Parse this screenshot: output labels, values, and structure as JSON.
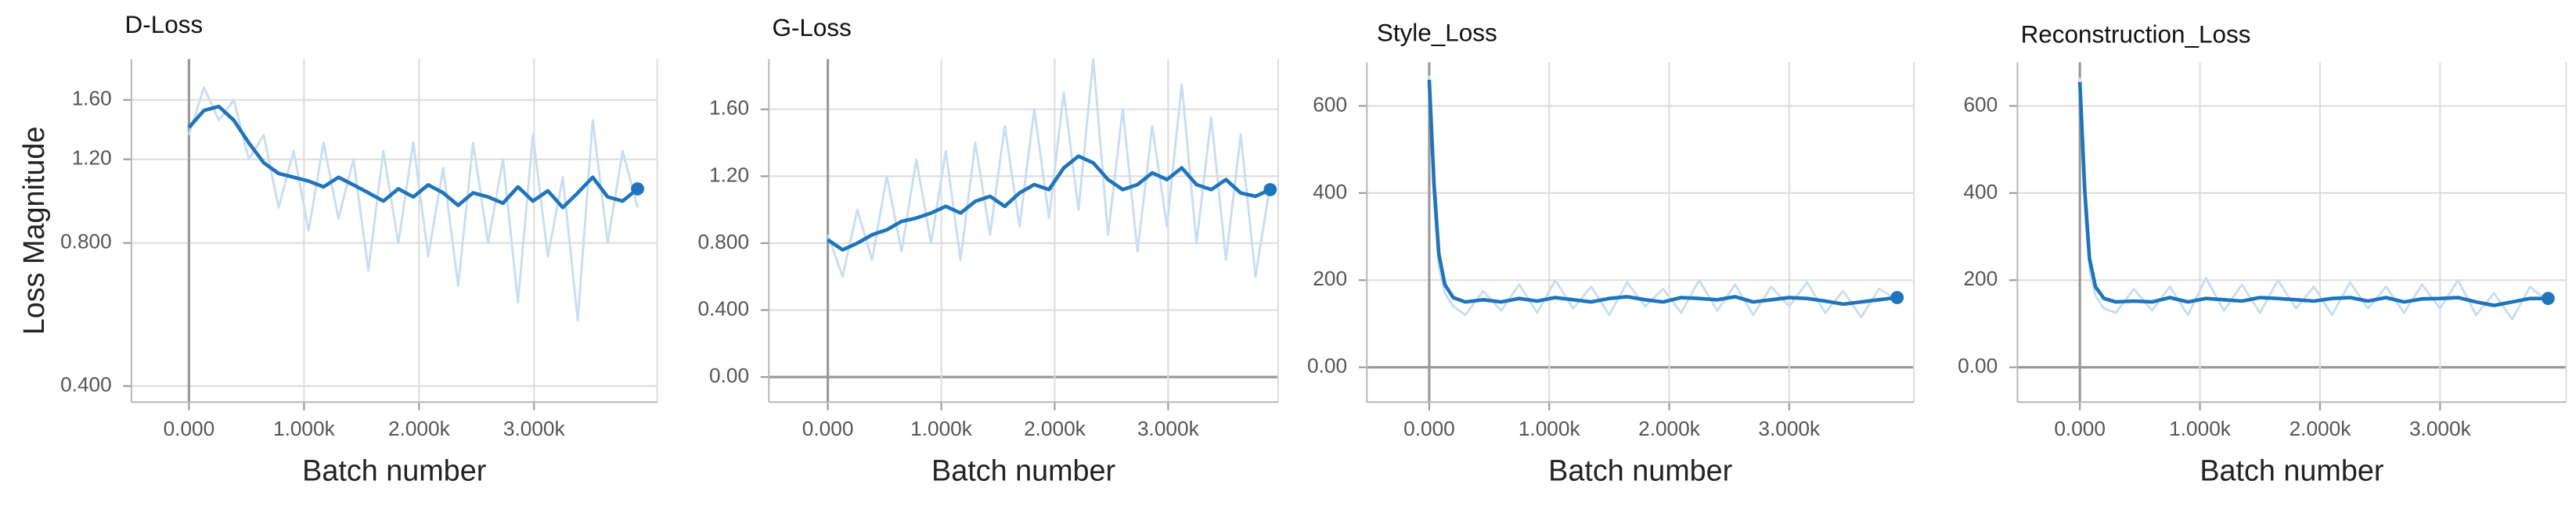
{
  "chart_data": [
    {
      "type": "line",
      "title": "D-Loss",
      "x_label": "Batch number",
      "y_label": "Loss Magnitude",
      "yscale": "log",
      "grid": true,
      "x": [
        0,
        130,
        260,
        390,
        520,
        650,
        780,
        910,
        1040,
        1170,
        1300,
        1430,
        1560,
        1690,
        1820,
        1950,
        2080,
        2210,
        2340,
        2470,
        2600,
        2730,
        2860,
        2990,
        3120,
        3250,
        3380,
        3510,
        3640,
        3770,
        3900
      ],
      "series": [
        {
          "color": "#c9def0",
          "values": [
            1.35,
            1.7,
            1.45,
            1.6,
            1.2,
            1.35,
            0.95,
            1.25,
            0.85,
            1.3,
            0.9,
            1.2,
            0.7,
            1.25,
            0.8,
            1.3,
            0.75,
            1.15,
            0.65,
            1.3,
            0.8,
            1.2,
            0.6,
            1.35,
            0.75,
            1.1,
            0.55,
            1.45,
            0.8,
            1.25,
            0.95
          ]
        },
        {
          "color": "#1f74bb",
          "values": [
            1.4,
            1.52,
            1.55,
            1.45,
            1.3,
            1.18,
            1.12,
            1.1,
            1.08,
            1.05,
            1.1,
            1.06,
            1.02,
            0.98,
            1.04,
            1.0,
            1.06,
            1.02,
            0.96,
            1.02,
            1.0,
            0.97,
            1.05,
            0.98,
            1.03,
            0.95,
            1.02,
            1.1,
            1.0,
            0.98,
            1.04
          ]
        }
      ],
      "xlim": [
        -500,
        4070
      ],
      "ylim": [
        0.37,
        1.95
      ],
      "xticks": [
        {
          "value": 0,
          "label": "0.000"
        },
        {
          "value": 1000,
          "label": "1.000k"
        },
        {
          "value": 2000,
          "label": "2.000k"
        },
        {
          "value": 3000,
          "label": "3.000k"
        }
      ],
      "yticks": [
        {
          "value": 0.4,
          "label": "0.400"
        },
        {
          "value": 0.8,
          "label": "0.800"
        },
        {
          "value": 1.2,
          "label": "1.20"
        },
        {
          "value": 1.6,
          "label": "1.60"
        }
      ]
    },
    {
      "type": "line",
      "title": "G-Loss",
      "x_label": "Batch number",
      "grid": true,
      "x": [
        0,
        130,
        260,
        390,
        520,
        650,
        780,
        910,
        1040,
        1170,
        1300,
        1430,
        1560,
        1690,
        1820,
        1950,
        2080,
        2210,
        2340,
        2470,
        2600,
        2730,
        2860,
        2990,
        3120,
        3250,
        3380,
        3510,
        3640,
        3770,
        3900
      ],
      "series": [
        {
          "color": "#c9def0",
          "values": [
            0.85,
            0.6,
            1.0,
            0.7,
            1.2,
            0.75,
            1.3,
            0.8,
            1.35,
            0.7,
            1.4,
            0.85,
            1.5,
            0.9,
            1.6,
            0.95,
            1.7,
            1.0,
            1.9,
            0.85,
            1.6,
            0.75,
            1.5,
            0.9,
            1.75,
            0.8,
            1.55,
            0.7,
            1.45,
            0.6,
            1.15
          ]
        },
        {
          "color": "#1f74bb",
          "values": [
            0.82,
            0.76,
            0.8,
            0.85,
            0.88,
            0.93,
            0.95,
            0.98,
            1.02,
            0.98,
            1.05,
            1.08,
            1.02,
            1.1,
            1.15,
            1.12,
            1.25,
            1.32,
            1.28,
            1.18,
            1.12,
            1.15,
            1.22,
            1.18,
            1.25,
            1.15,
            1.12,
            1.18,
            1.1,
            1.08,
            1.12
          ]
        }
      ],
      "xlim": [
        -520,
        3970
      ],
      "ylim": [
        -0.15,
        1.9
      ],
      "xticks": [
        {
          "value": 0,
          "label": "0.000"
        },
        {
          "value": 1000,
          "label": "1.000k"
        },
        {
          "value": 2000,
          "label": "2.000k"
        },
        {
          "value": 3000,
          "label": "3.000k"
        }
      ],
      "yticks": [
        {
          "value": 0,
          "label": "0.00"
        },
        {
          "value": 0.4,
          "label": "0.400"
        },
        {
          "value": 0.8,
          "label": "0.800"
        },
        {
          "value": 1.2,
          "label": "1.20"
        },
        {
          "value": 1.6,
          "label": "1.60"
        }
      ]
    },
    {
      "type": "line",
      "title": "Style_Loss",
      "x_label": "Batch number",
      "grid": true,
      "x": [
        0,
        40,
        80,
        130,
        200,
        300,
        450,
        600,
        750,
        900,
        1050,
        1200,
        1350,
        1500,
        1650,
        1800,
        1950,
        2100,
        2250,
        2400,
        2550,
        2700,
        2850,
        3000,
        3150,
        3300,
        3450,
        3600,
        3750,
        3900
      ],
      "series": [
        {
          "color": "#c9def0",
          "values": [
            670,
            380,
            230,
            170,
            140,
            120,
            175,
            130,
            190,
            125,
            200,
            135,
            185,
            120,
            195,
            140,
            180,
            125,
            200,
            130,
            190,
            120,
            185,
            140,
            195,
            125,
            175,
            115,
            180,
            155
          ]
        },
        {
          "color": "#1f74bb",
          "values": [
            660,
            420,
            260,
            190,
            160,
            150,
            155,
            150,
            158,
            152,
            160,
            155,
            150,
            158,
            162,
            155,
            150,
            160,
            158,
            155,
            162,
            150,
            155,
            160,
            158,
            152,
            145,
            150,
            155,
            160
          ]
        }
      ],
      "xlim": [
        -520,
        4040
      ],
      "ylim": [
        -80,
        700
      ],
      "xticks": [
        {
          "value": 0,
          "label": "0.000"
        },
        {
          "value": 1000,
          "label": "1.000k"
        },
        {
          "value": 2000,
          "label": "2.000k"
        },
        {
          "value": 3000,
          "label": "3.000k"
        }
      ],
      "yticks": [
        {
          "value": 0,
          "label": "0.00"
        },
        200,
        400,
        600
      ]
    },
    {
      "type": "line",
      "title": "Reconstruction_Loss",
      "x_label": "Batch number",
      "grid": true,
      "x": [
        0,
        40,
        80,
        130,
        200,
        300,
        450,
        600,
        750,
        900,
        1050,
        1200,
        1350,
        1500,
        1650,
        1800,
        1950,
        2100,
        2250,
        2400,
        2550,
        2700,
        2850,
        3000,
        3150,
        3300,
        3450,
        3600,
        3750,
        3900
      ],
      "series": [
        {
          "color": "#c9def0",
          "values": [
            665,
            370,
            225,
            165,
            135,
            125,
            180,
            130,
            185,
            120,
            205,
            130,
            190,
            125,
            200,
            135,
            185,
            120,
            195,
            135,
            185,
            125,
            190,
            135,
            200,
            120,
            170,
            110,
            185,
            150
          ]
        },
        {
          "color": "#1f74bb",
          "values": [
            655,
            410,
            250,
            185,
            158,
            150,
            152,
            150,
            160,
            150,
            158,
            155,
            152,
            160,
            158,
            155,
            152,
            158,
            160,
            152,
            160,
            150,
            157,
            158,
            160,
            150,
            142,
            150,
            158,
            158
          ]
        }
      ],
      "xlim": [
        -520,
        4050
      ],
      "ylim": [
        -80,
        700
      ],
      "xticks": [
        {
          "value": 0,
          "label": "0.000"
        },
        {
          "value": 1000,
          "label": "1.000k"
        },
        {
          "value": 2000,
          "label": "2.000k"
        },
        {
          "value": 3000,
          "label": "3.000k"
        }
      ],
      "yticks": [
        {
          "value": 0,
          "label": "0.00"
        },
        200,
        400,
        600
      ]
    }
  ]
}
